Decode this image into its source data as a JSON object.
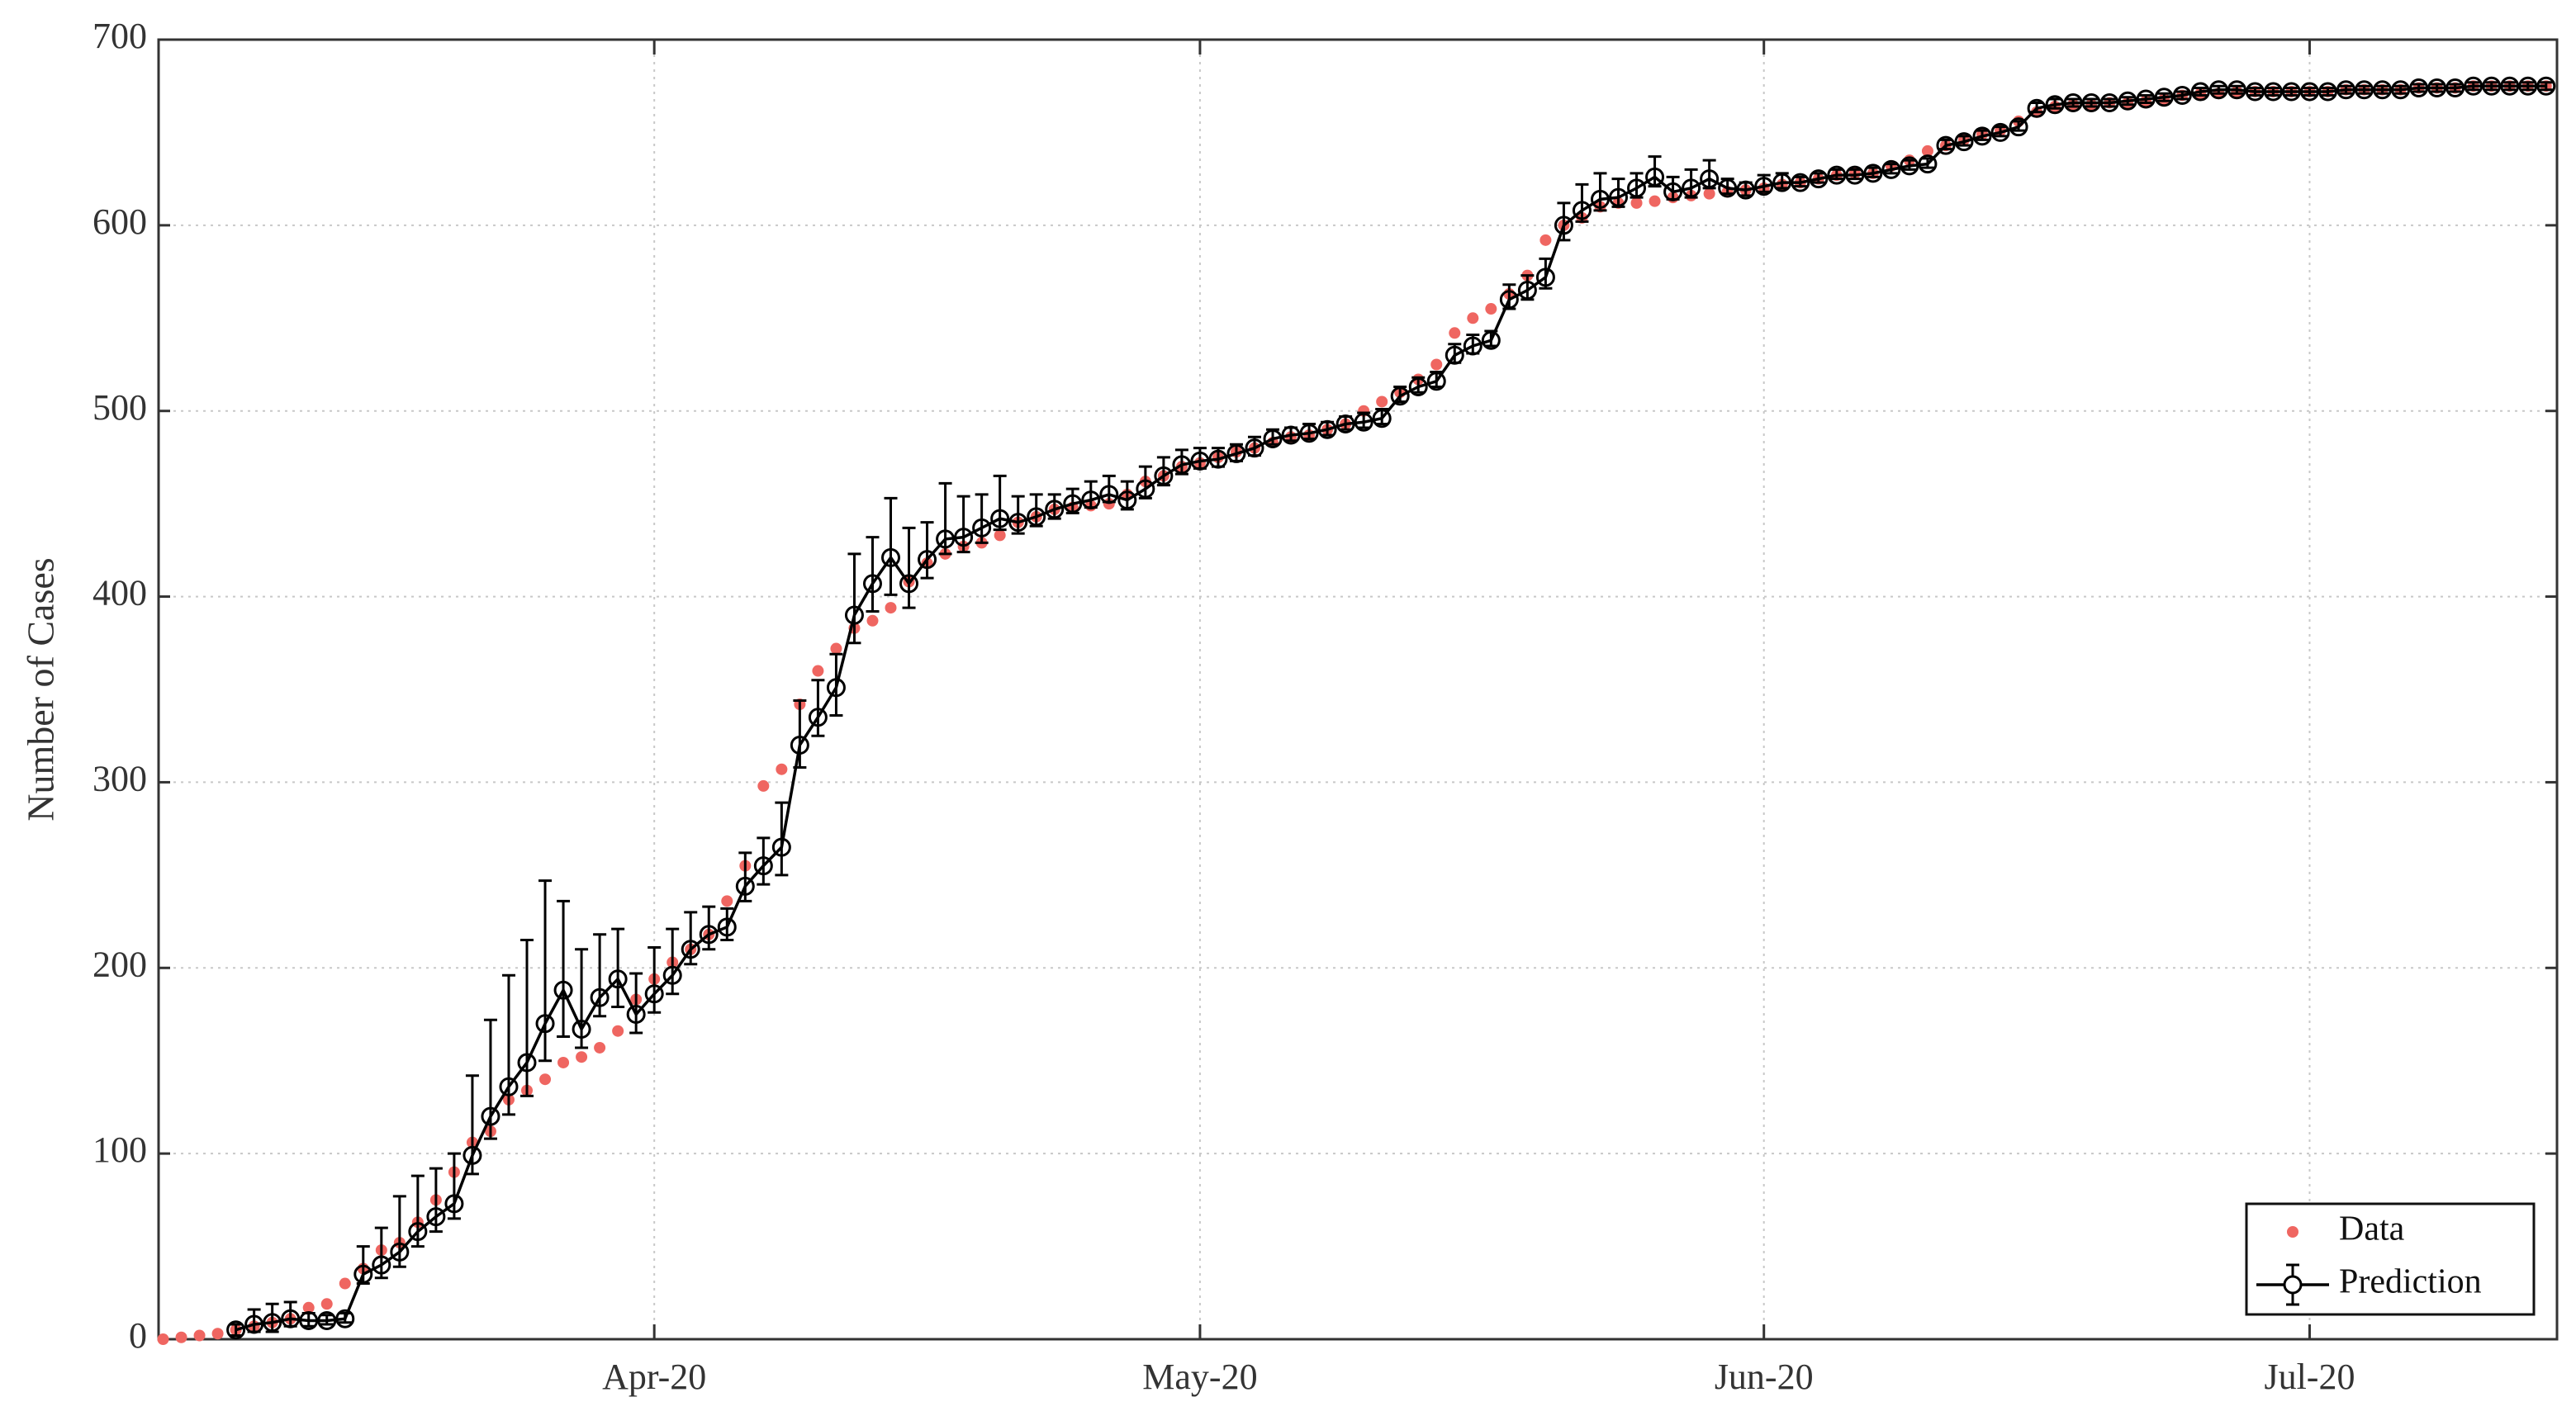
{
  "chart_data": {
    "type": "scatter",
    "y_label": "Number of Cases",
    "x": [
      65,
      66,
      67,
      68,
      69,
      70,
      71,
      72,
      73,
      74,
      75,
      76,
      77,
      78,
      79,
      80,
      81,
      82,
      83,
      84,
      85,
      86,
      87,
      88,
      89,
      90,
      91,
      92,
      93,
      94,
      95,
      96,
      97,
      98,
      99,
      100,
      101,
      102,
      103,
      104,
      105,
      106,
      107,
      108,
      109,
      110,
      111,
      112,
      113,
      114,
      115,
      116,
      117,
      118,
      119,
      120,
      121,
      122,
      123,
      124,
      125,
      126,
      127,
      128,
      129,
      130,
      131,
      132,
      133,
      134,
      135,
      136,
      137,
      138,
      139,
      140,
      141,
      142,
      143,
      144,
      145,
      146,
      147,
      148,
      149,
      150,
      151,
      152,
      153,
      154,
      155,
      156,
      157,
      158,
      159,
      160,
      161,
      162,
      163,
      164,
      165,
      166,
      167,
      168,
      169,
      170,
      171,
      172,
      173,
      174,
      175,
      176,
      177,
      178,
      179,
      180,
      181,
      182,
      183,
      184,
      185,
      186,
      187,
      188,
      189,
      190,
      191,
      192,
      193,
      194,
      195,
      196
    ],
    "xlim": [
      64.75,
      196.6
    ],
    "xticks": [
      {
        "value": 92,
        "label": "Apr-20"
      },
      {
        "value": 122,
        "label": "May-20"
      },
      {
        "value": 153,
        "label": "Jun-20"
      },
      {
        "value": 183,
        "label": "Jul-20"
      }
    ],
    "ylim": [
      0,
      700
    ],
    "yticks": [
      0,
      100,
      200,
      300,
      400,
      500,
      600,
      700
    ],
    "grid": true,
    "legend": "lower right",
    "series": [
      {
        "name": "Data",
        "color": "#ef6661",
        "marker": "dot",
        "values": [
          0,
          1,
          2,
          3,
          5,
          7,
          9,
          11,
          17,
          19,
          30,
          38,
          48,
          52,
          63,
          75,
          90,
          106,
          112,
          129,
          134,
          140,
          149,
          152,
          157,
          166,
          183,
          194,
          203,
          210,
          218,
          236,
          255,
          298,
          307,
          342,
          360,
          372,
          383,
          387,
          394,
          408,
          418,
          423,
          427,
          429,
          433,
          440,
          443,
          447,
          448,
          449,
          450,
          455,
          462,
          465,
          470,
          472,
          475,
          478,
          480,
          483,
          486,
          487,
          490,
          493,
          500,
          505,
          510,
          517,
          525,
          542,
          550,
          555,
          563,
          573,
          592,
          600,
          604,
          610,
          612,
          612,
          613,
          615,
          616,
          617,
          618,
          619,
          620,
          622,
          623,
          625,
          627,
          628,
          628,
          632,
          635,
          640,
          643,
          646,
          649,
          651,
          656,
          661,
          664,
          665,
          665,
          666,
          666,
          667,
          668,
          670,
          671,
          671,
          672,
          672,
          672,
          672,
          672,
          672,
          673,
          673,
          673,
          673,
          674,
          674,
          674,
          675,
          675,
          675,
          675,
          675
        ]
      },
      {
        "name": "Prediction",
        "color": "#000000",
        "marker": "circle-line-errorbar",
        "values": [
          null,
          null,
          null,
          null,
          5,
          8,
          9,
          11,
          10,
          10,
          11,
          35,
          40,
          47,
          58,
          66,
          73,
          99,
          120,
          136,
          149,
          170,
          188,
          167,
          184,
          194,
          175,
          186,
          196,
          210,
          218,
          222,
          244,
          255,
          265,
          320,
          335,
          351,
          390,
          407,
          421,
          407,
          420,
          431,
          432,
          437,
          442,
          440,
          443,
          447,
          450,
          452,
          455,
          452,
          458,
          465,
          471,
          473,
          474,
          477,
          480,
          485,
          487,
          488,
          490,
          493,
          494,
          496,
          508,
          513,
          516,
          530,
          535,
          538,
          560,
          565,
          572,
          600,
          608,
          614,
          615,
          620,
          626,
          618,
          620,
          625,
          620,
          619,
          621,
          623,
          623,
          625,
          627,
          627,
          628,
          630,
          632,
          633,
          643,
          645,
          648,
          650,
          653,
          663,
          665,
          666,
          666,
          666,
          667,
          668,
          669,
          670,
          672,
          673,
          673,
          672,
          672,
          672,
          672,
          672,
          673,
          673,
          673,
          673,
          674,
          674,
          674,
          675,
          675,
          675,
          675,
          675
        ],
        "error_plus": [
          null,
          null,
          null,
          null,
          3,
          8,
          10,
          9,
          4,
          3,
          3,
          15,
          20,
          30,
          30,
          26,
          27,
          43,
          52,
          60,
          66,
          77,
          48,
          43,
          34,
          27,
          22,
          25,
          25,
          20,
          15,
          10,
          18,
          15,
          24,
          24,
          20,
          18,
          33,
          25,
          32,
          30,
          20,
          30,
          22,
          18,
          23,
          14,
          12,
          8,
          8,
          10,
          10,
          10,
          12,
          10,
          8,
          7,
          6,
          5,
          6,
          5,
          4,
          5,
          4,
          4,
          5,
          5,
          5,
          5,
          5,
          6,
          6,
          5,
          8,
          8,
          10,
          12,
          14,
          14,
          10,
          8,
          11,
          8,
          10,
          10,
          5,
          4,
          6,
          5,
          3,
          3,
          3,
          3,
          3,
          3,
          3,
          3,
          3,
          3,
          3,
          3,
          3,
          3,
          3,
          2,
          2,
          2,
          2,
          2,
          2,
          2,
          2,
          2,
          2,
          2,
          2,
          2,
          2,
          2,
          2,
          2,
          2,
          2,
          2,
          2,
          2,
          2,
          2,
          2,
          2,
          2
        ],
        "error_minus": [
          null,
          null,
          null,
          null,
          3,
          4,
          5,
          4,
          3,
          2,
          2,
          5,
          7,
          8,
          8,
          8,
          8,
          10,
          12,
          15,
          18,
          20,
          25,
          10,
          10,
          15,
          10,
          10,
          10,
          8,
          8,
          7,
          8,
          10,
          15,
          12,
          10,
          15,
          15,
          15,
          20,
          13,
          10,
          8,
          8,
          8,
          6,
          6,
          5,
          5,
          5,
          4,
          4,
          5,
          5,
          5,
          5,
          4,
          4,
          4,
          4,
          3,
          3,
          3,
          3,
          3,
          3,
          3,
          3,
          3,
          3,
          4,
          4,
          3,
          5,
          5,
          6,
          8,
          6,
          6,
          5,
          5,
          5,
          4,
          5,
          5,
          3,
          3,
          3,
          3,
          2,
          2,
          2,
          2,
          2,
          2,
          2,
          2,
          2,
          2,
          2,
          2,
          2,
          2,
          2,
          2,
          2,
          2,
          2,
          2,
          2,
          2,
          2,
          2,
          2,
          2,
          2,
          2,
          2,
          2,
          2,
          2,
          2,
          2,
          2,
          2,
          2,
          2,
          2,
          2,
          2,
          2
        ]
      }
    ]
  }
}
